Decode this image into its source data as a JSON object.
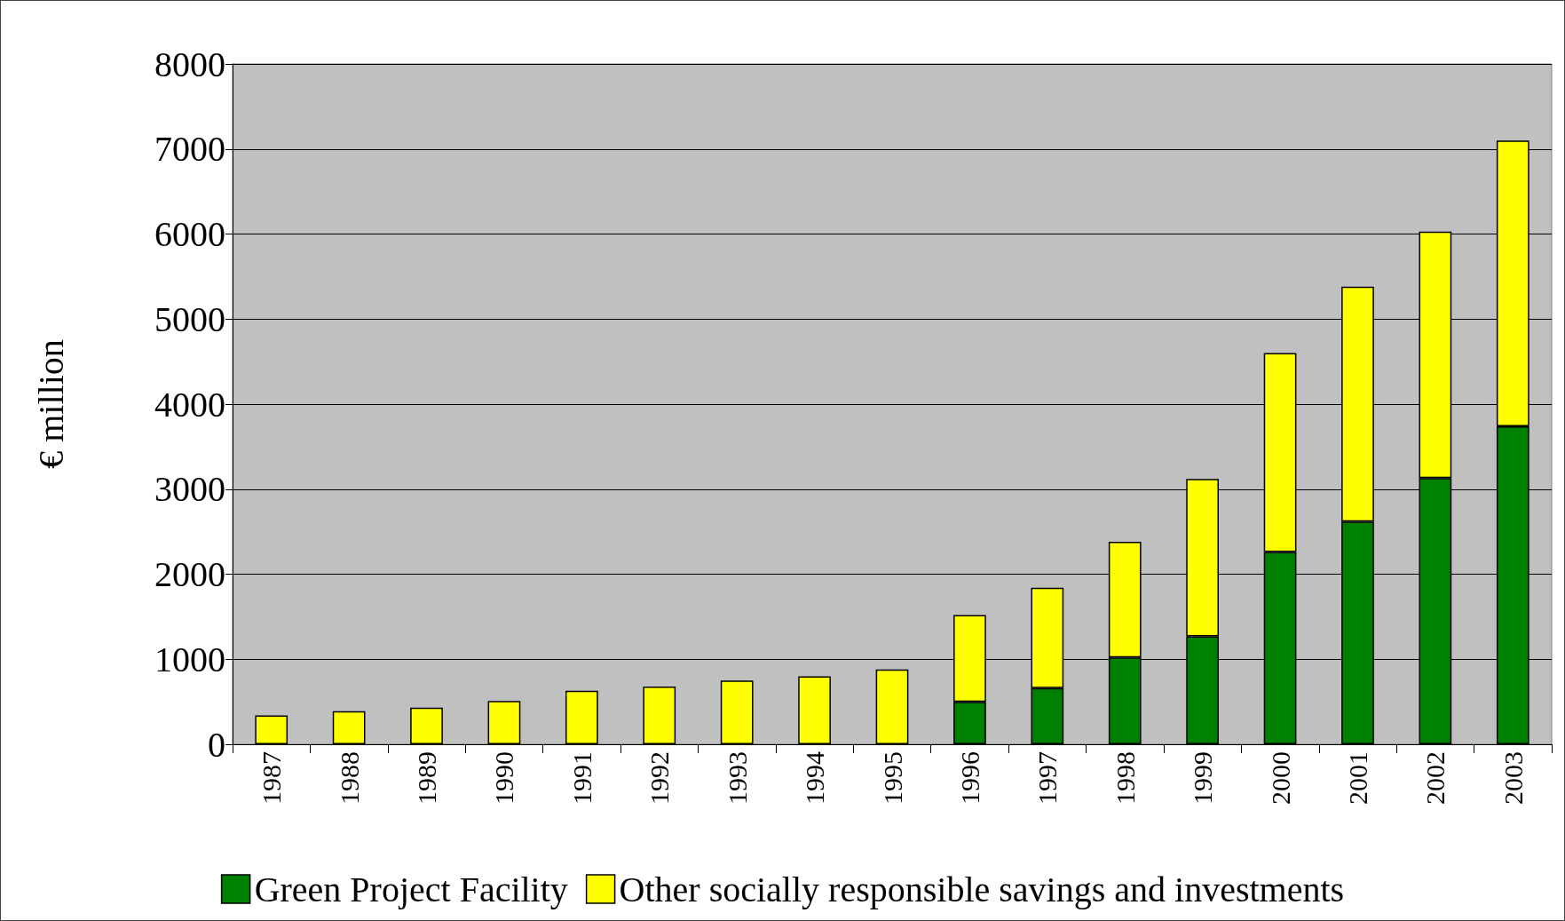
{
  "chart_data": {
    "type": "bar",
    "ylabel": "€ million",
    "stacked": true,
    "categories": [
      "1987",
      "1988",
      "1989",
      "1990",
      "1991",
      "1992",
      "1993",
      "1994",
      "1995",
      "1996",
      "1997",
      "1998",
      "1999",
      "2000",
      "2001",
      "2002",
      "2003"
    ],
    "series": [
      {
        "name": "Green Project Facility",
        "color": "#008000",
        "values": [
          null,
          null,
          null,
          null,
          null,
          null,
          null,
          null,
          null,
          500,
          660,
          1020,
          1270,
          2260,
          2620,
          3130,
          3740
        ]
      },
      {
        "name": "Other socially responsible savings and investments",
        "color": "#ffff00",
        "values": [
          340,
          390,
          430,
          510,
          630,
          680,
          750,
          800,
          880,
          1020,
          1180,
          1360,
          1850,
          2340,
          2760,
          2900,
          3360
        ]
      }
    ],
    "ylim": [
      0,
      8000
    ],
    "yticks": [
      0,
      1000,
      2000,
      3000,
      4000,
      5000,
      6000,
      7000,
      8000
    ],
    "grid": "y",
    "legend": "bottom"
  }
}
